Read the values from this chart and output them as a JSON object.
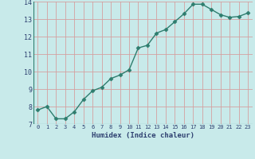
{
  "x": [
    0,
    1,
    2,
    3,
    4,
    5,
    6,
    7,
    8,
    9,
    10,
    11,
    12,
    13,
    14,
    15,
    16,
    17,
    18,
    19,
    20,
    21,
    22,
    23
  ],
  "y": [
    7.8,
    8.0,
    7.3,
    7.3,
    7.7,
    8.4,
    8.9,
    9.1,
    9.6,
    9.8,
    10.1,
    11.35,
    11.5,
    12.2,
    12.4,
    12.85,
    13.3,
    13.85,
    13.85,
    13.55,
    13.25,
    13.1,
    13.15,
    13.35
  ],
  "xlabel": "Humidex (Indice chaleur)",
  "ylim": [
    7,
    14
  ],
  "xlim": [
    -0.5,
    23.5
  ],
  "yticks": [
    7,
    8,
    9,
    10,
    11,
    12,
    13,
    14
  ],
  "xticks": [
    0,
    1,
    2,
    3,
    4,
    5,
    6,
    7,
    8,
    9,
    10,
    11,
    12,
    13,
    14,
    15,
    16,
    17,
    18,
    19,
    20,
    21,
    22,
    23
  ],
  "line_color": "#2e7d6e",
  "marker_color": "#2e7d6e",
  "bg_color": "#c8eaea",
  "grid_color": "#d4a0a0",
  "text_color": "#2e7d6e",
  "xlabel_color": "#2e4070",
  "tick_label_color": "#2e4070"
}
